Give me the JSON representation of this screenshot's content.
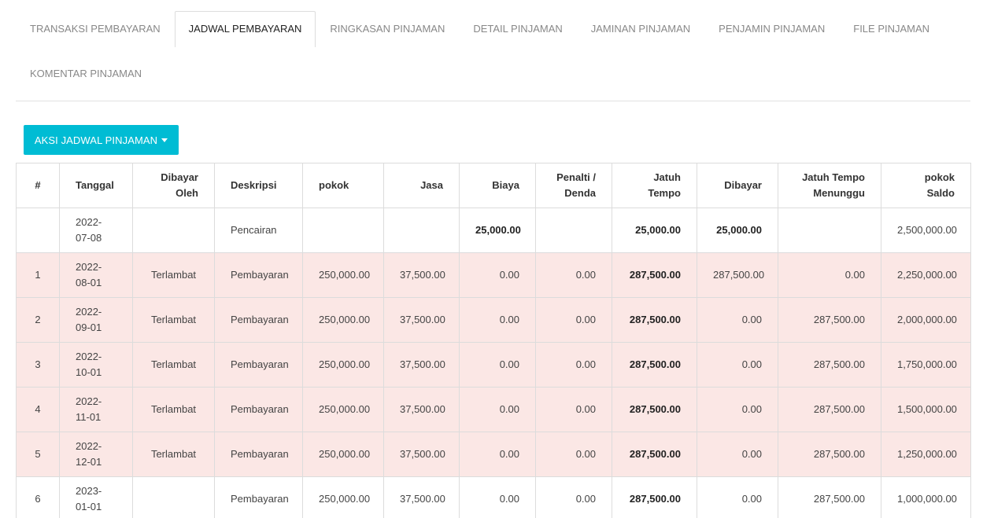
{
  "tabs": {
    "row1": [
      {
        "label": "TRANSAKSI PEMBAYARAN",
        "active": false
      },
      {
        "label": "JADWAL PEMBAYARAN",
        "active": true
      },
      {
        "label": "RINGKASAN PINJAMAN",
        "active": false
      },
      {
        "label": "DETAIL PINJAMAN",
        "active": false
      },
      {
        "label": "JAMINAN PINJAMAN",
        "active": false
      },
      {
        "label": "PENJAMIN PINJAMAN",
        "active": false
      },
      {
        "label": "FILE PINJAMAN",
        "active": false
      }
    ],
    "row2": [
      {
        "label": "KOMENTAR PINJAMAN",
        "active": false
      }
    ]
  },
  "action_button": {
    "label": "AKSI JADWAL PINJAMAN",
    "icon": "caret-down-icon"
  },
  "colors": {
    "accent": "#00bcd4",
    "late_row": "#fbe7e5",
    "border": "#dcdcdc"
  },
  "table": {
    "headers": [
      "#",
      "Tanggal",
      "Dibayar Oleh",
      "Deskripsi",
      "pokok",
      "Jasa",
      "Biaya",
      "Penalti / Denda",
      "Jatuh Tempo",
      "Dibayar",
      "Jatuh Tempo Menunggu",
      "pokok Saldo"
    ],
    "rows": [
      {
        "no": "",
        "tanggal": "2022-07-08",
        "dibayar_oleh": "",
        "deskripsi": "Pencairan",
        "pokok": "",
        "jasa": "",
        "biaya": "25,000.00",
        "penalti": "",
        "jatuh_tempo": "25,000.00",
        "dibayar": "25,000.00",
        "menunggu": "",
        "saldo": "2,500,000.00",
        "late": false
      },
      {
        "no": "1",
        "tanggal": "2022-08-01",
        "dibayar_oleh": "Terlambat",
        "deskripsi": "Pembayaran",
        "pokok": "250,000.00",
        "jasa": "37,500.00",
        "biaya": "0.00",
        "penalti": "0.00",
        "jatuh_tempo": "287,500.00",
        "dibayar": "287,500.00",
        "menunggu": "0.00",
        "saldo": "2,250,000.00",
        "late": true
      },
      {
        "no": "2",
        "tanggal": "2022-09-01",
        "dibayar_oleh": "Terlambat",
        "deskripsi": "Pembayaran",
        "pokok": "250,000.00",
        "jasa": "37,500.00",
        "biaya": "0.00",
        "penalti": "0.00",
        "jatuh_tempo": "287,500.00",
        "dibayar": "0.00",
        "menunggu": "287,500.00",
        "saldo": "2,000,000.00",
        "late": true
      },
      {
        "no": "3",
        "tanggal": "2022-10-01",
        "dibayar_oleh": "Terlambat",
        "deskripsi": "Pembayaran",
        "pokok": "250,000.00",
        "jasa": "37,500.00",
        "biaya": "0.00",
        "penalti": "0.00",
        "jatuh_tempo": "287,500.00",
        "dibayar": "0.00",
        "menunggu": "287,500.00",
        "saldo": "1,750,000.00",
        "late": true
      },
      {
        "no": "4",
        "tanggal": "2022-11-01",
        "dibayar_oleh": "Terlambat",
        "deskripsi": "Pembayaran",
        "pokok": "250,000.00",
        "jasa": "37,500.00",
        "biaya": "0.00",
        "penalti": "0.00",
        "jatuh_tempo": "287,500.00",
        "dibayar": "0.00",
        "menunggu": "287,500.00",
        "saldo": "1,500,000.00",
        "late": true
      },
      {
        "no": "5",
        "tanggal": "2022-12-01",
        "dibayar_oleh": "Terlambat",
        "deskripsi": "Pembayaran",
        "pokok": "250,000.00",
        "jasa": "37,500.00",
        "biaya": "0.00",
        "penalti": "0.00",
        "jatuh_tempo": "287,500.00",
        "dibayar": "0.00",
        "menunggu": "287,500.00",
        "saldo": "1,250,000.00",
        "late": true
      },
      {
        "no": "6",
        "tanggal": "2023-01-01",
        "dibayar_oleh": "",
        "deskripsi": "Pembayaran",
        "pokok": "250,000.00",
        "jasa": "37,500.00",
        "biaya": "0.00",
        "penalti": "0.00",
        "jatuh_tempo": "287,500.00",
        "dibayar": "0.00",
        "menunggu": "287,500.00",
        "saldo": "1,000,000.00",
        "late": false
      }
    ]
  }
}
